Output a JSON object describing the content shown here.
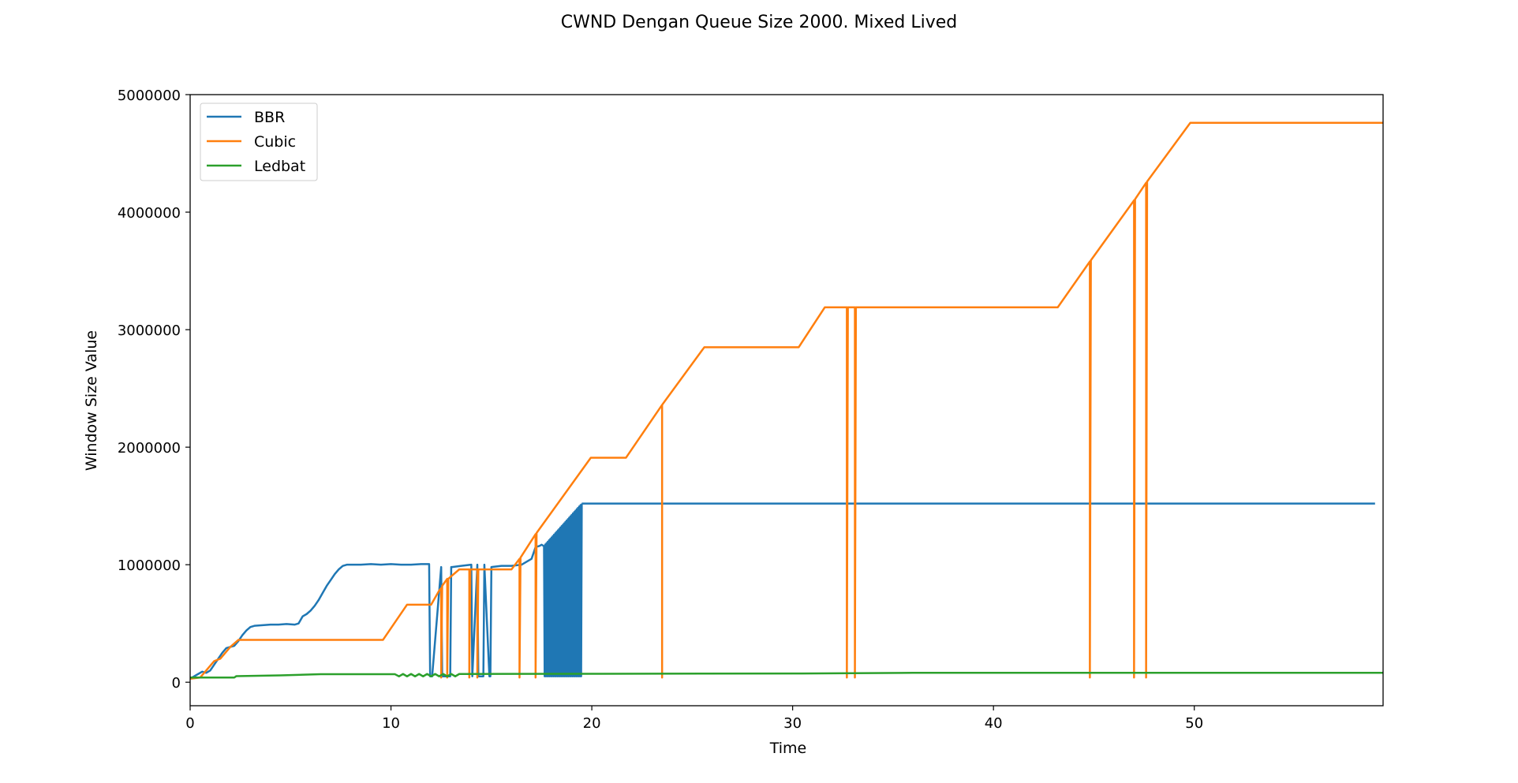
{
  "chart_data": {
    "type": "line",
    "title": "CWND Dengan Queue Size 2000. Mixed Lived",
    "xlabel": "Time",
    "ylabel": "Window Size Value",
    "xlim": [
      0,
      59.4
    ],
    "ylim": [
      -200000,
      5000000
    ],
    "xticks": [
      0,
      10,
      20,
      30,
      40,
      50
    ],
    "xtick_labels": [
      "0",
      "10",
      "20",
      "30",
      "40",
      "50"
    ],
    "yticks": [
      0,
      1000000,
      2000000,
      3000000,
      4000000,
      5000000
    ],
    "ytick_labels": [
      "0",
      "1000000",
      "2000000",
      "3000000",
      "4000000",
      "5000000"
    ],
    "grid": false,
    "legend_position": "top-left",
    "series": [
      {
        "name": "BBR",
        "color": "#1f77b4",
        "x": [
          0,
          0.4,
          0.6,
          0.8,
          1.0,
          1.2,
          1.4,
          1.6,
          1.8,
          2.0,
          2.2,
          2.4,
          2.6,
          2.8,
          3.0,
          3.2,
          3.6,
          4.0,
          4.4,
          4.8,
          5.2,
          5.4,
          5.6,
          5.8,
          6.0,
          6.2,
          6.4,
          6.6,
          6.8,
          7.0,
          7.2,
          7.4,
          7.6,
          7.8,
          8.0,
          8.5,
          9.0,
          9.5,
          10.0,
          10.5,
          11.0,
          11.5,
          11.9,
          11.95,
          12.0,
          12.05,
          12.5,
          12.55,
          12.95,
          13.0,
          13.05,
          13.5,
          14.0,
          14.05,
          14.3,
          14.35,
          14.6,
          14.65,
          14.9,
          14.95,
          15.0,
          15.5,
          16.0,
          16.5,
          17.0,
          17.2,
          17.4,
          17.5,
          17.6,
          17.62
        ],
        "y": [
          30000,
          70000,
          90000,
          80000,
          100000,
          150000,
          200000,
          250000,
          290000,
          300000,
          310000,
          350000,
          400000,
          440000,
          470000,
          480000,
          485000,
          490000,
          490000,
          495000,
          490000,
          500000,
          560000,
          580000,
          610000,
          650000,
          700000,
          760000,
          820000,
          870000,
          920000,
          960000,
          990000,
          1000000,
          1000000,
          1000000,
          1005000,
          1000000,
          1005000,
          1000000,
          1000000,
          1005000,
          1005000,
          50000,
          50000,
          50000,
          980000,
          50000,
          50000,
          980000,
          980000,
          990000,
          1000000,
          50000,
          1000000,
          50000,
          50000,
          1000000,
          50000,
          50000,
          980000,
          990000,
          990000,
          1000000,
          1050000,
          1150000,
          1160000,
          1170000,
          1160000,
          1155000
        ],
        "band": {
          "x_start": 17.62,
          "x_end": 19.5,
          "low": 50000,
          "high_start": 1160000,
          "high_end": 1520000,
          "oscillations": 60
        },
        "tail_x": [
          19.5,
          59.0
        ],
        "tail_y": [
          1520000,
          1520000
        ]
      },
      {
        "name": "Cubic",
        "color": "#ff7f0e",
        "x": [
          0,
          0.5,
          0.8,
          1.2,
          1.5,
          2.0,
          2.4,
          9.6,
          10.8,
          12.0,
          12.4,
          12.5,
          12.5,
          12.55,
          12.8,
          12.8,
          12.85,
          13.4,
          13.9,
          13.9,
          13.95,
          14.3,
          14.3,
          14.35,
          16.0,
          16.4,
          16.4,
          16.45,
          17.2,
          17.2,
          17.25,
          19.95,
          21.7,
          23.5,
          23.5,
          23.5,
          25.6,
          30.3,
          31.6,
          32.7,
          32.7,
          32.75,
          33.1,
          33.1,
          33.15,
          43.2,
          44.8,
          44.8,
          44.85,
          47.0,
          47.0,
          47.05,
          47.6,
          47.6,
          47.65,
          49.8,
          59.4
        ],
        "y": [
          30000,
          40000,
          100000,
          180000,
          200000,
          300000,
          360000,
          360000,
          660000,
          660000,
          780000,
          800000,
          40000,
          820000,
          880000,
          40000,
          880000,
          960000,
          960000,
          40000,
          960000,
          960000,
          40000,
          960000,
          960000,
          1050000,
          40000,
          1060000,
          1260000,
          40000,
          1270000,
          1910000,
          1910000,
          2360000,
          40000,
          2360000,
          2850000,
          2850000,
          3190000,
          3190000,
          40000,
          3190000,
          3190000,
          40000,
          3190000,
          3190000,
          3580000,
          40000,
          3590000,
          4100000,
          40000,
          4110000,
          4250000,
          40000,
          4260000,
          4760000,
          4760000
        ]
      },
      {
        "name": "Ledbat",
        "color": "#2ca02c",
        "x": [
          0,
          2.2,
          2.3,
          4.5,
          6.5,
          10.2,
          10.4,
          10.6,
          10.8,
          11.0,
          11.2,
          11.4,
          11.6,
          11.8,
          12.0,
          12.2,
          12.4,
          12.6,
          12.8,
          13.0,
          13.2,
          13.4,
          13.6,
          20,
          30,
          36,
          59.4
        ],
        "y": [
          40000,
          40000,
          52000,
          58000,
          68000,
          68000,
          50000,
          70000,
          50000,
          70000,
          50000,
          70000,
          50000,
          70000,
          50000,
          70000,
          50000,
          70000,
          50000,
          70000,
          50000,
          70000,
          70000,
          72000,
          74000,
          80000,
          80000
        ]
      }
    ]
  }
}
